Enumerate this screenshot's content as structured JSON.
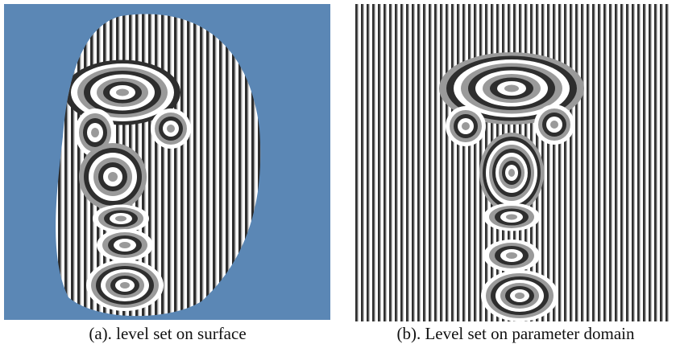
{
  "figure": {
    "panels": [
      {
        "caption": "(a). level set on surface"
      },
      {
        "caption": "(b). Level set on parameter domain"
      }
    ]
  }
}
